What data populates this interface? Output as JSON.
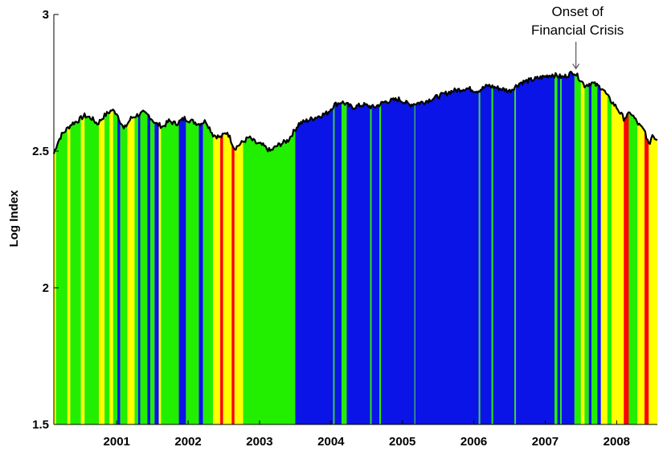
{
  "colors": {
    "blue": "#0a14e6",
    "green": "#22ee00",
    "yellow": "#ffff00",
    "red": "#ff0000",
    "line": "#000000",
    "background": "#ffffff"
  },
  "chart_data": {
    "type": "area",
    "title": "",
    "xlabel": "",
    "ylabel": "Log Index",
    "xlim": [
      2000.17,
      2008.62
    ],
    "ylim": [
      1.5,
      3.0
    ],
    "y_ticks": [
      {
        "value": 1.5,
        "label": "1.5"
      },
      {
        "value": 2.0,
        "label": "2"
      },
      {
        "value": 2.5,
        "label": "2.5"
      },
      {
        "value": 3.0,
        "label": "3"
      }
    ],
    "x_ticks": [
      {
        "value": 2001.05,
        "label": "2001"
      },
      {
        "value": 2002.05,
        "label": "2002"
      },
      {
        "value": 2003.05,
        "label": "2003"
      },
      {
        "value": 2004.05,
        "label": "2004"
      },
      {
        "value": 2005.05,
        "label": "2005"
      },
      {
        "value": 2006.05,
        "label": "2006"
      },
      {
        "value": 2007.05,
        "label": "2007"
      },
      {
        "value": 2008.05,
        "label": "2008"
      }
    ],
    "grid": false,
    "legend": "none",
    "series": [
      {
        "x": [
          2000.17,
          2000.22,
          2000.28,
          2000.35,
          2000.42,
          2000.5,
          2000.6,
          2000.7,
          2000.78,
          2000.88,
          2000.98,
          2001.05,
          2001.15,
          2001.25,
          2001.32,
          2001.42,
          2001.5,
          2001.6,
          2001.7,
          2001.78,
          2001.88,
          2002.0,
          2002.1,
          2002.2,
          2002.3,
          2002.4,
          2002.5,
          2002.6,
          2002.7,
          2002.8,
          2002.9,
          2003.0,
          2003.1,
          2003.2,
          2003.3,
          2003.45,
          2003.6,
          2003.8,
          2004.0,
          2004.1,
          2004.2,
          2004.35,
          2004.5,
          2004.65,
          2004.8,
          2005.0,
          2005.15,
          2005.35,
          2005.55,
          2005.75,
          2005.95,
          2006.1,
          2006.25,
          2006.4,
          2006.55,
          2006.7,
          2006.85,
          2007.0,
          2007.15,
          2007.3,
          2007.45,
          2007.55,
          2007.6,
          2007.7,
          2007.85,
          2007.95,
          2008.05,
          2008.15,
          2008.25,
          2008.35,
          2008.45,
          2008.5,
          2008.55,
          2008.62
        ],
        "y": [
          2.49,
          2.53,
          2.56,
          2.58,
          2.6,
          2.61,
          2.63,
          2.62,
          2.6,
          2.63,
          2.65,
          2.64,
          2.58,
          2.62,
          2.63,
          2.64,
          2.63,
          2.6,
          2.59,
          2.61,
          2.6,
          2.62,
          2.61,
          2.6,
          2.61,
          2.56,
          2.55,
          2.57,
          2.51,
          2.53,
          2.55,
          2.53,
          2.52,
          2.5,
          2.52,
          2.54,
          2.6,
          2.62,
          2.64,
          2.67,
          2.68,
          2.66,
          2.67,
          2.66,
          2.68,
          2.69,
          2.67,
          2.68,
          2.7,
          2.72,
          2.73,
          2.72,
          2.74,
          2.73,
          2.72,
          2.75,
          2.76,
          2.77,
          2.78,
          2.77,
          2.79,
          2.76,
          2.74,
          2.75,
          2.73,
          2.69,
          2.66,
          2.62,
          2.64,
          2.6,
          2.57,
          2.52,
          2.56,
          2.54
        ]
      }
    ],
    "regimes": [
      {
        "start": 2000.17,
        "end": 2000.2,
        "color": "yellow"
      },
      {
        "start": 2000.2,
        "end": 2000.36,
        "color": "green"
      },
      {
        "start": 2000.36,
        "end": 2000.4,
        "color": "yellow"
      },
      {
        "start": 2000.4,
        "end": 2000.55,
        "color": "green"
      },
      {
        "start": 2000.55,
        "end": 2000.6,
        "color": "yellow"
      },
      {
        "start": 2000.6,
        "end": 2000.8,
        "color": "green"
      },
      {
        "start": 2000.8,
        "end": 2000.88,
        "color": "yellow"
      },
      {
        "start": 2000.88,
        "end": 2000.95,
        "color": "green"
      },
      {
        "start": 2000.95,
        "end": 2001.0,
        "color": "yellow"
      },
      {
        "start": 2001.0,
        "end": 2001.06,
        "color": "green"
      },
      {
        "start": 2001.06,
        "end": 2001.1,
        "color": "blue"
      },
      {
        "start": 2001.1,
        "end": 2001.2,
        "color": "green"
      },
      {
        "start": 2001.2,
        "end": 2001.3,
        "color": "yellow"
      },
      {
        "start": 2001.3,
        "end": 2001.35,
        "color": "green"
      },
      {
        "start": 2001.35,
        "end": 2001.38,
        "color": "blue"
      },
      {
        "start": 2001.38,
        "end": 2001.48,
        "color": "green"
      },
      {
        "start": 2001.48,
        "end": 2001.52,
        "color": "blue"
      },
      {
        "start": 2001.52,
        "end": 2001.58,
        "color": "green"
      },
      {
        "start": 2001.58,
        "end": 2001.64,
        "color": "blue"
      },
      {
        "start": 2001.64,
        "end": 2001.67,
        "color": "yellow"
      },
      {
        "start": 2001.67,
        "end": 2001.92,
        "color": "green"
      },
      {
        "start": 2001.92,
        "end": 2002.02,
        "color": "blue"
      },
      {
        "start": 2002.02,
        "end": 2002.2,
        "color": "green"
      },
      {
        "start": 2002.2,
        "end": 2002.26,
        "color": "blue"
      },
      {
        "start": 2002.26,
        "end": 2002.4,
        "color": "green"
      },
      {
        "start": 2002.4,
        "end": 2002.5,
        "color": "yellow"
      },
      {
        "start": 2002.5,
        "end": 2002.54,
        "color": "red"
      },
      {
        "start": 2002.54,
        "end": 2002.66,
        "color": "yellow"
      },
      {
        "start": 2002.66,
        "end": 2002.7,
        "color": "red"
      },
      {
        "start": 2002.7,
        "end": 2002.82,
        "color": "yellow"
      },
      {
        "start": 2002.82,
        "end": 2003.55,
        "color": "green"
      },
      {
        "start": 2003.55,
        "end": 2004.08,
        "color": "blue"
      },
      {
        "start": 2004.08,
        "end": 2004.1,
        "color": "green"
      },
      {
        "start": 2004.1,
        "end": 2004.2,
        "color": "blue"
      },
      {
        "start": 2004.2,
        "end": 2004.27,
        "color": "green"
      },
      {
        "start": 2004.27,
        "end": 2004.6,
        "color": "blue"
      },
      {
        "start": 2004.6,
        "end": 2004.62,
        "color": "green"
      },
      {
        "start": 2004.62,
        "end": 2004.73,
        "color": "blue"
      },
      {
        "start": 2004.73,
        "end": 2004.75,
        "color": "green"
      },
      {
        "start": 2004.75,
        "end": 2005.22,
        "color": "blue"
      },
      {
        "start": 2005.22,
        "end": 2005.23,
        "color": "green"
      },
      {
        "start": 2005.23,
        "end": 2006.12,
        "color": "blue"
      },
      {
        "start": 2006.12,
        "end": 2006.14,
        "color": "green"
      },
      {
        "start": 2006.14,
        "end": 2006.3,
        "color": "blue"
      },
      {
        "start": 2006.3,
        "end": 2006.32,
        "color": "green"
      },
      {
        "start": 2006.32,
        "end": 2006.62,
        "color": "blue"
      },
      {
        "start": 2006.62,
        "end": 2006.64,
        "color": "green"
      },
      {
        "start": 2006.64,
        "end": 2007.18,
        "color": "blue"
      },
      {
        "start": 2007.18,
        "end": 2007.22,
        "color": "green"
      },
      {
        "start": 2007.22,
        "end": 2007.26,
        "color": "blue"
      },
      {
        "start": 2007.26,
        "end": 2007.28,
        "color": "green"
      },
      {
        "start": 2007.28,
        "end": 2007.46,
        "color": "blue"
      },
      {
        "start": 2007.46,
        "end": 2007.55,
        "color": "green"
      },
      {
        "start": 2007.55,
        "end": 2007.6,
        "color": "yellow"
      },
      {
        "start": 2007.6,
        "end": 2007.66,
        "color": "green"
      },
      {
        "start": 2007.66,
        "end": 2007.7,
        "color": "blue"
      },
      {
        "start": 2007.7,
        "end": 2007.78,
        "color": "green"
      },
      {
        "start": 2007.78,
        "end": 2007.83,
        "color": "blue"
      },
      {
        "start": 2007.83,
        "end": 2007.92,
        "color": "yellow"
      },
      {
        "start": 2007.92,
        "end": 2007.98,
        "color": "green"
      },
      {
        "start": 2007.98,
        "end": 2008.15,
        "color": "yellow"
      },
      {
        "start": 2008.15,
        "end": 2008.22,
        "color": "red"
      },
      {
        "start": 2008.22,
        "end": 2008.34,
        "color": "green"
      },
      {
        "start": 2008.34,
        "end": 2008.44,
        "color": "yellow"
      },
      {
        "start": 2008.44,
        "end": 2008.5,
        "color": "red"
      },
      {
        "start": 2008.5,
        "end": 2008.62,
        "color": "yellow"
      }
    ],
    "annotations": [
      {
        "text_lines": [
          "Onset of",
          "Financial Crisis"
        ],
        "x": 2007.48,
        "y": 2.79
      }
    ]
  }
}
